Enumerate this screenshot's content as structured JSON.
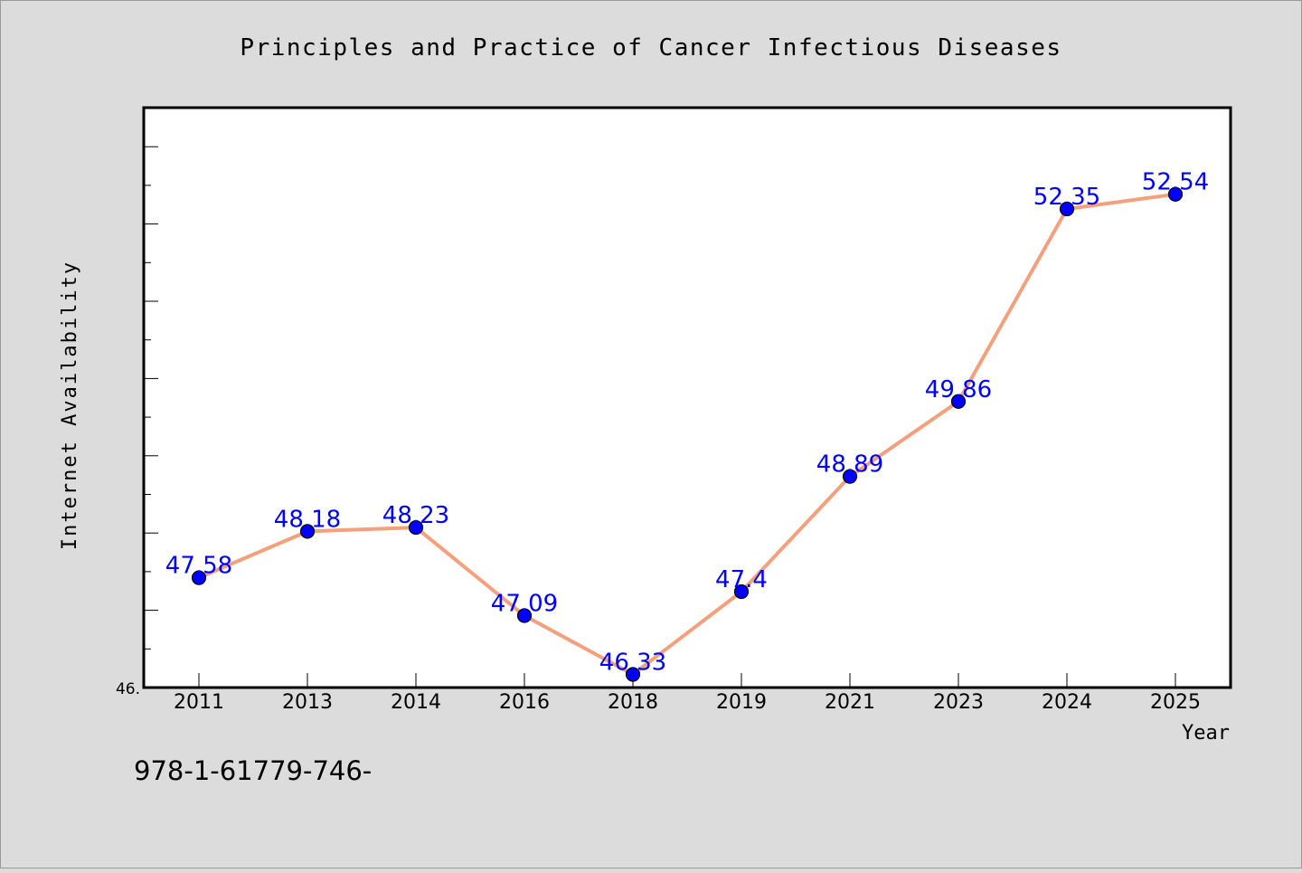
{
  "chart_data": {
    "type": "line",
    "title": "Principles and Practice of Cancer Infectious Diseases",
    "xlabel": "Year",
    "ylabel": "Internet Availability",
    "categories": [
      "2011",
      "2013",
      "2014",
      "2016",
      "2018",
      "2019",
      "2021",
      "2023",
      "2024",
      "2025"
    ],
    "series": [
      {
        "values": [
          47.58,
          48.18,
          48.23,
          47.09,
          46.33,
          47.4,
          48.89,
          49.86,
          52.35,
          52.54
        ]
      }
    ],
    "data_labels": [
      "47.58",
      "48.18",
      "48.23",
      "47.09",
      "46.33",
      "47.4",
      "48.89",
      "49.86",
      "52.35",
      "52.54"
    ],
    "ylim": [
      46.16,
      53.66
    ],
    "y_tick_label": "46.",
    "grid": false,
    "legend": "none",
    "colors": {
      "line": "#f4a07c",
      "marker": "#0000ff",
      "data_label": "#0000ff",
      "background": "#dcdcdc",
      "plot_background": "#ffffff",
      "axis": "#000000"
    }
  },
  "footnote": "978-1-61779-746-"
}
